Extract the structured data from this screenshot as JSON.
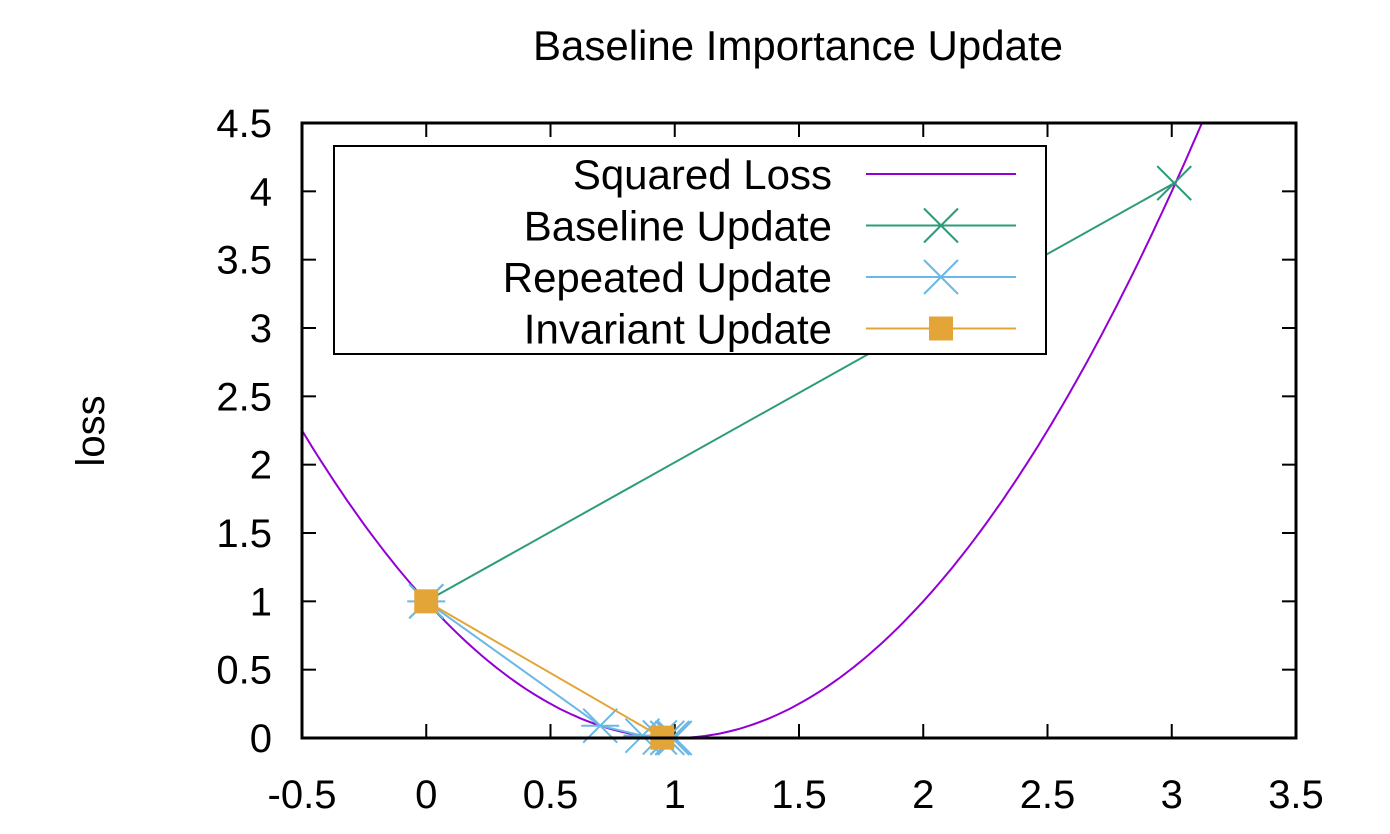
{
  "chart_data": {
    "type": "line",
    "title": "Baseline Importance Update",
    "xlabel": "",
    "ylabel": "loss",
    "xlim": [
      -0.5,
      3.5
    ],
    "ylim": [
      0,
      4.5
    ],
    "x_ticks": [
      "-0.5",
      "0",
      "0.5",
      "1",
      "1.5",
      "2",
      "2.5",
      "3",
      "3.5"
    ],
    "y_ticks": [
      "0",
      "0.5",
      "1",
      "1.5",
      "2",
      "2.5",
      "3",
      "3.5",
      "4",
      "4.5"
    ],
    "grid": false,
    "legend_position": "top-left inside",
    "series": [
      {
        "name": "Squared Loss",
        "color": "#9400d3",
        "marker": "none",
        "function": "(x-1)^2",
        "x": [
          -0.5,
          -0.25,
          0,
          0.25,
          0.5,
          0.75,
          1,
          1.25,
          1.5,
          1.75,
          2,
          2.25,
          2.5,
          2.75,
          3,
          3.12
        ],
        "y": [
          2.25,
          1.5625,
          1,
          0.5625,
          0.25,
          0.0625,
          0,
          0.0625,
          0.25,
          0.5625,
          1,
          1.5625,
          2.25,
          3.0625,
          4,
          4.5
        ]
      },
      {
        "name": "Baseline Update",
        "color": "#2e9c7c",
        "marker": "cross",
        "x": [
          0,
          3.01
        ],
        "y": [
          1,
          4.06
        ]
      },
      {
        "name": "Repeated Update",
        "color": "#6bb8e6",
        "marker": "asterisk",
        "x": [
          0,
          0.7,
          0.87,
          0.94,
          0.97,
          0.99,
          1.0
        ],
        "y": [
          1,
          0.09,
          0.017,
          0.004,
          0.001,
          0.0001,
          0
        ]
      },
      {
        "name": "Invariant Update",
        "color": "#e3a537",
        "marker": "filled-square",
        "x": [
          0,
          0.95
        ],
        "y": [
          1,
          0.0025
        ]
      }
    ]
  }
}
